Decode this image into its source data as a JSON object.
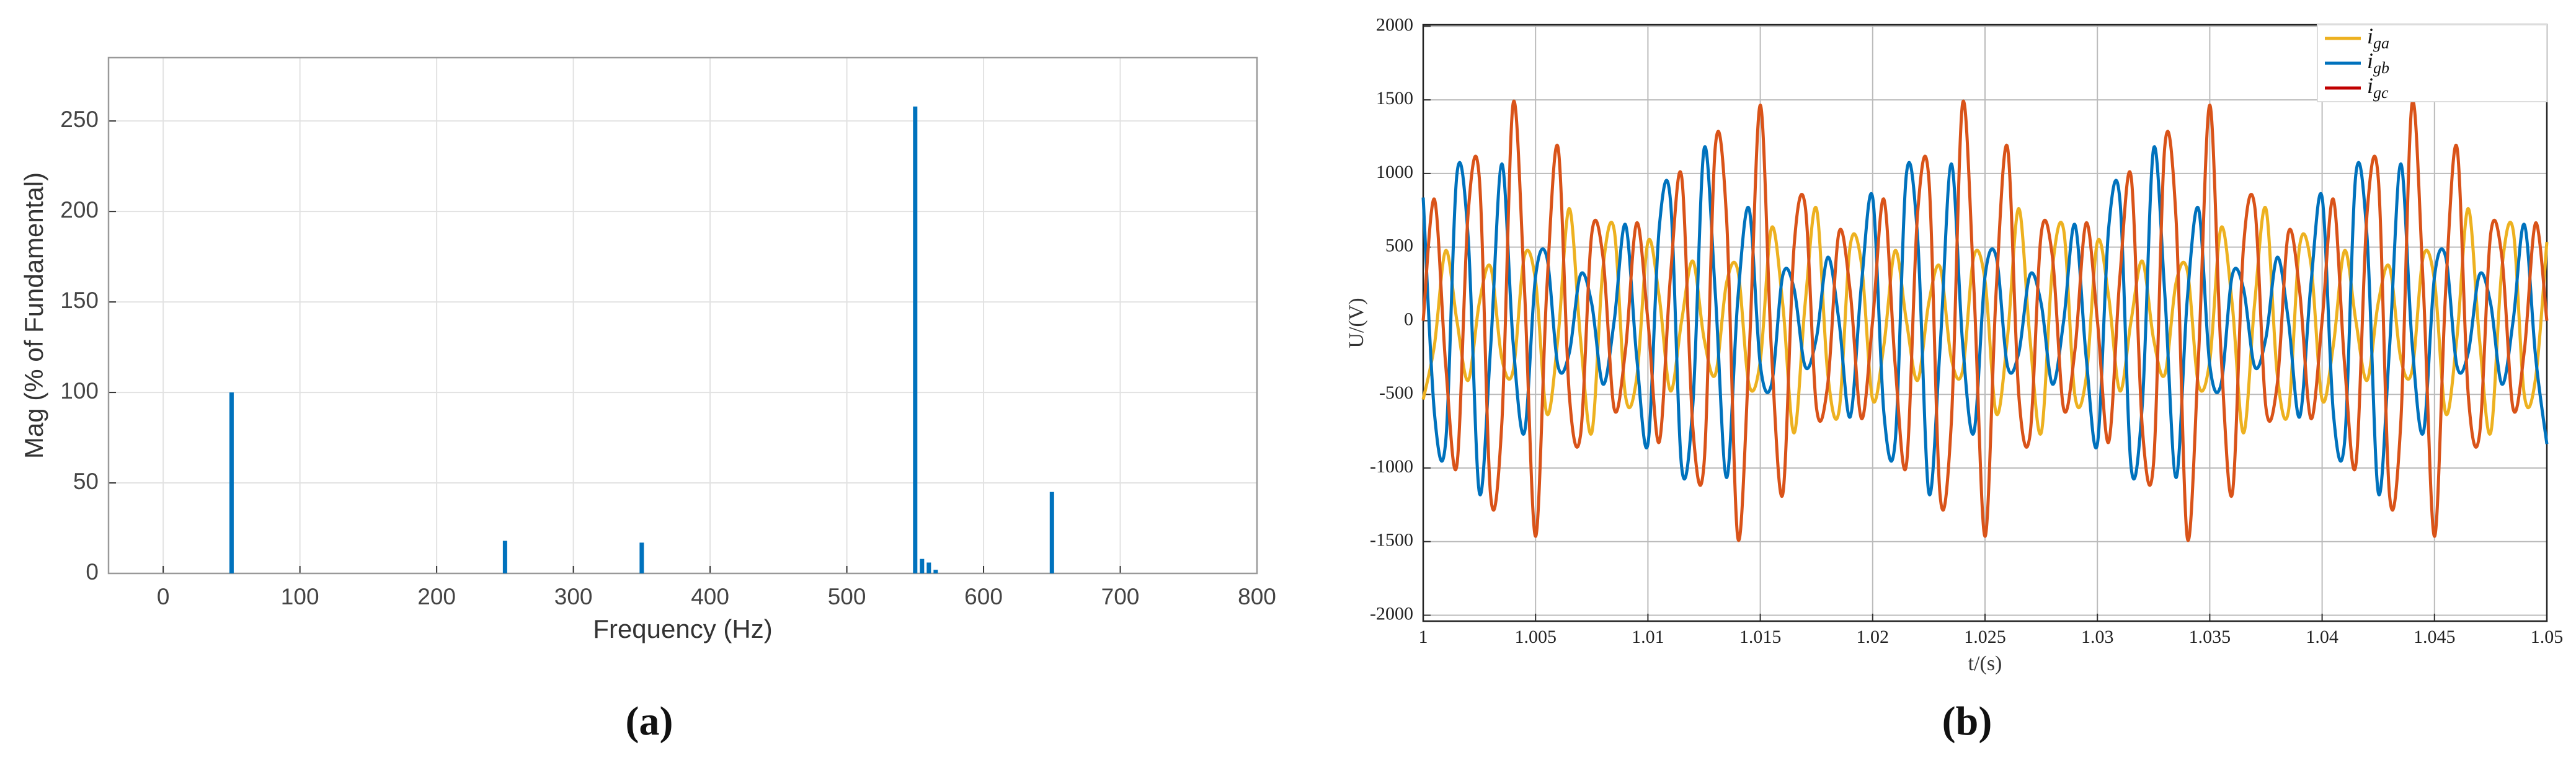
{
  "chart_data": [
    {
      "type": "bar",
      "caption": "(a)",
      "x_label": "Frequency (Hz)",
      "y_label": "Mag (% of Fundamental)",
      "x": [
        50,
        250,
        350,
        550,
        555,
        560,
        565,
        650
      ],
      "values": [
        100,
        18,
        17,
        258,
        8,
        6,
        2,
        45
      ],
      "color": "#0072BD",
      "xlim": [
        -40,
        800
      ],
      "xticks": [
        0,
        100,
        200,
        300,
        400,
        500,
        600,
        700,
        800
      ],
      "ylim": [
        0,
        285
      ],
      "yticks": [
        0,
        50,
        100,
        150,
        200,
        250
      ],
      "grid": true
    },
    {
      "type": "line",
      "caption": "(b)",
      "x_label": "t/(s)",
      "y_label": "U/(V)",
      "legend": "upper right",
      "grid": true,
      "xlim": [
        1,
        1.05
      ],
      "xticks": [
        1,
        1.005,
        1.01,
        1.015,
        1.02,
        1.025,
        1.03,
        1.035,
        1.04,
        1.045,
        1.05
      ],
      "ylim": [
        -2040,
        2010
      ],
      "yticks": [
        -2000,
        -1500,
        -1000,
        -500,
        0,
        500,
        1000,
        1500,
        2000
      ],
      "x": [
        1,
        1.0005,
        1.001,
        1.0015,
        1.002,
        1.0025,
        1.003,
        1.0035,
        1.004,
        1.0045,
        1.005,
        1.0055,
        1.006,
        1.0065,
        1.007,
        1.0075,
        1.008,
        1.0085,
        1.009,
        1.0095,
        1.01,
        1.0105,
        1.011,
        1.0115,
        1.012,
        1.0125,
        1.013,
        1.0135,
        1.014,
        1.0145,
        1.015,
        1.0155,
        1.016,
        1.0165,
        1.017,
        1.0175,
        1.018,
        1.0185,
        1.019,
        1.0195,
        1.02,
        1.0205,
        1.021,
        1.0215,
        1.022,
        1.0225,
        1.023,
        1.0235,
        1.024,
        1.0245,
        1.025,
        1.0255,
        1.026,
        1.0265,
        1.027,
        1.0275,
        1.028,
        1.0285,
        1.029,
        1.0295,
        1.03,
        1.0305,
        1.031,
        1.0315,
        1.032,
        1.0325,
        1.033,
        1.0335,
        1.034,
        1.0345,
        1.035,
        1.0355,
        1.036,
        1.0365,
        1.037,
        1.0375,
        1.038,
        1.0385,
        1.039,
        1.0395,
        1.04,
        1.0405,
        1.041,
        1.0415,
        1.042,
        1.0425,
        1.043,
        1.0435,
        1.044,
        1.0445,
        1.045,
        1.0455,
        1.046,
        1.0465,
        1.047,
        1.0475,
        1.048,
        1.0485,
        1.049,
        1.0495,
        1.05
      ],
      "series": [
        {
          "name": "iga",
          "color": "#EDB120",
          "values": [
            -535,
            -166,
            476,
            0,
            -405,
            124,
            365,
            -258,
            -341,
            435,
            272,
            -630,
            -112,
            762,
            -123,
            -761,
            359,
            616,
            -508,
            -389,
            535,
            166,
            -476,
            0,
            405,
            -124,
            -365,
            258,
            341,
            -435,
            -272,
            630,
            112,
            -762,
            123,
            761,
            -359,
            -616,
            508,
            389,
            -535,
            -166,
            476,
            0,
            -405,
            124,
            365,
            -258,
            -341,
            435,
            272,
            -630,
            -112,
            762,
            -123,
            -761,
            359,
            616,
            -508,
            -389,
            535,
            166,
            -476,
            0,
            405,
            -124,
            -365,
            258,
            341,
            -435,
            -272,
            630,
            112,
            -762,
            123,
            761,
            -359,
            -616,
            508,
            389,
            -535,
            -166,
            476,
            0,
            -405,
            124,
            365,
            -258,
            -341,
            435,
            272,
            -630,
            -112,
            762,
            -123,
            -761,
            359,
            616,
            -508,
            -389,
            535
          ]
        },
        {
          "name": "igb",
          "color": "#0072BD",
          "values": [
            837,
            -626,
            -823,
            993,
            568,
            -1168,
            -182,
            1065,
            -146,
            -761,
            300,
            433,
            -308,
            -219,
            312,
            115,
            -431,
            0,
            653,
            -247,
            -837,
            626,
            823,
            -993,
            -568,
            1168,
            182,
            -1065,
            146,
            761,
            -300,
            -433,
            308,
            219,
            -312,
            -115,
            431,
            0,
            -653,
            247,
            837,
            -626,
            -823,
            993,
            568,
            -1168,
            -182,
            1065,
            -146,
            -761,
            300,
            433,
            -308,
            -219,
            312,
            115,
            -431,
            0,
            653,
            -247,
            -837,
            626,
            823,
            -993,
            -568,
            1168,
            182,
            -1065,
            146,
            761,
            -300,
            -433,
            308,
            219,
            -312,
            -115,
            431,
            0,
            -653,
            247,
            837,
            -626,
            -823,
            993,
            568,
            -1168,
            -182,
            1065,
            -146,
            -761,
            300,
            433,
            -308,
            -219,
            312,
            115,
            -431,
            0,
            653,
            -247,
            -837
          ]
        },
        {
          "name": "igc",
          "color": "#D95319",
          "values": [
            0,
            825,
            -297,
            -980,
            729,
            965,
            -1184,
            -694,
            1474,
            238,
            -1464,
            213,
            1178,
            -499,
            -777,
            590,
            433,
            -599,
            -201,
            664,
            0,
            -825,
            297,
            980,
            -729,
            -965,
            1184,
            694,
            -1474,
            -238,
            1464,
            -213,
            -1178,
            499,
            777,
            -590,
            -433,
            599,
            201,
            -664,
            0,
            825,
            -297,
            -980,
            729,
            965,
            -1184,
            -694,
            1474,
            238,
            -1464,
            213,
            1178,
            -499,
            -777,
            590,
            433,
            -599,
            -201,
            664,
            0,
            -825,
            297,
            980,
            -729,
            -965,
            1184,
            694,
            -1474,
            -238,
            1464,
            -213,
            -1178,
            499,
            777,
            -590,
            -433,
            599,
            201,
            -664,
            0,
            825,
            -297,
            -980,
            729,
            965,
            -1184,
            -694,
            1474,
            238,
            -1464,
            213,
            1178,
            -499,
            -777,
            590,
            433,
            -599,
            -201,
            664,
            0
          ]
        }
      ]
    }
  ]
}
